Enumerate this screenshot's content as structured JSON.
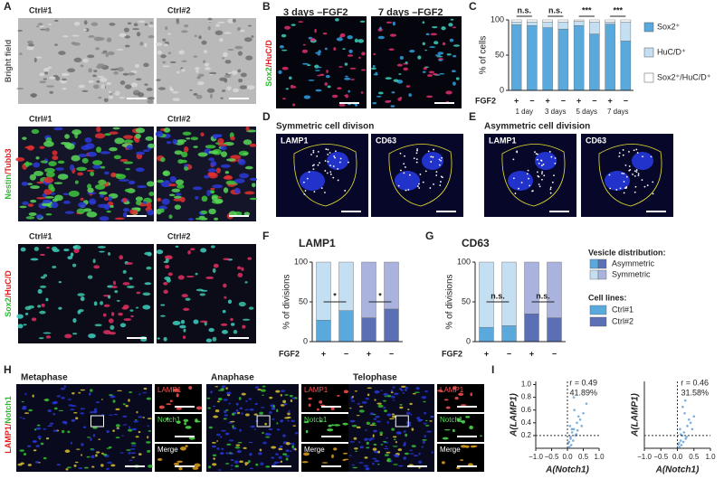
{
  "panel_labels": [
    "A",
    "B",
    "C",
    "D",
    "E",
    "F",
    "G",
    "H",
    "I"
  ],
  "a": {
    "row_titles": [
      [
        "Ctrl#1",
        "Ctrl#2"
      ],
      [
        "Ctrl#1",
        "Ctrl#2"
      ],
      [
        "Ctrl#1",
        "Ctrl#2"
      ]
    ],
    "side_labels": [
      [
        {
          "text": "Bright field",
          "color": "#555555"
        }
      ],
      [
        {
          "text": "Nestin",
          "color": "#2fb82f"
        },
        {
          "text": "/",
          "color": "#e02020"
        },
        {
          "text": "Tubb3",
          "color": "#e02020"
        }
      ],
      [
        {
          "text": "Sox2",
          "color": "#2fb82f"
        },
        {
          "text": "/",
          "color": "#e02020"
        },
        {
          "text": "HuC/D",
          "color": "#e02020"
        }
      ]
    ]
  },
  "b": {
    "titles": [
      "3 days –FGF2",
      "7 days –FGF2"
    ],
    "side_label": [
      {
        "text": "Sox2",
        "color": "#2fb82f"
      },
      {
        "text": "/",
        "color": "#e02020"
      },
      {
        "text": "HuC/D",
        "color": "#e02020"
      }
    ]
  },
  "d": {
    "title": "Symmetric cell divison",
    "tags": [
      "LAMP1",
      "CD63"
    ]
  },
  "e": {
    "title": "Asymmetric cell division",
    "tags": [
      "LAMP1",
      "CD63"
    ]
  },
  "h": {
    "stages": [
      "Metaphase",
      "Anaphase",
      "Telophase"
    ],
    "side_label": [
      {
        "text": "LAMP1",
        "color": "#e02020"
      },
      {
        "text": "/",
        "color": "#e02020"
      },
      {
        "text": "Notch1",
        "color": "#2fb82f"
      }
    ],
    "insets": [
      {
        "text": "LAMP1",
        "color": "#ff5050"
      },
      {
        "text": "Notch1",
        "color": "#50e050"
      },
      {
        "text": "Merge",
        "color": "#ffffff"
      }
    ]
  },
  "legend": {
    "vesicle_title": "Vesicle distribution:",
    "vesicle_items": [
      {
        "name": "Asymmetric",
        "colors": [
          "#5aa9dd",
          "#5b6fb5"
        ]
      },
      {
        "name": "Symmetric",
        "colors": [
          "#c4dff2",
          "#aab3dd"
        ]
      }
    ],
    "cell_title": "Cell lines:",
    "cell_items": [
      {
        "name": "Ctrl#1",
        "color": "#5aa9dd"
      },
      {
        "name": "Ctrl#2",
        "color": "#5b6fb5"
      }
    ]
  },
  "chart_data": [
    {
      "type": "bar",
      "stacked": true,
      "ylabel": "% of cells",
      "row_label": "FGF2",
      "categories": [
        "+",
        "−",
        "+",
        "−",
        "+",
        "−",
        "+",
        "−"
      ],
      "groups": [
        "1 day",
        "3 days",
        "5 days",
        "7 days"
      ],
      "significance": [
        "n.s.",
        "n.s.",
        "***",
        "***"
      ],
      "series": [
        {
          "name": "Sox2⁺",
          "color": "#5aa9dd",
          "values": [
            93,
            92,
            89,
            87,
            92,
            80,
            94,
            70
          ]
        },
        {
          "name": "HuC/D⁺",
          "color": "#c4dff2",
          "values": [
            4,
            5,
            8,
            10,
            6,
            17,
            3,
            27
          ]
        },
        {
          "name": "Sox2⁺/HuC/D⁺",
          "color": "#ffffff",
          "values": [
            3,
            3,
            3,
            3,
            2,
            3,
            3,
            3
          ]
        }
      ],
      "ylim": [
        0,
        100
      ],
      "yticks": [
        0,
        50,
        100
      ]
    },
    {
      "type": "bar",
      "stacked": true,
      "title": "LAMP1",
      "ylabel": "% of divisions",
      "row_label": "FGF2",
      "categories": [
        "+",
        "−",
        "+",
        "−"
      ],
      "significance": [
        "*",
        "*"
      ],
      "series": [
        {
          "colors": [
            "#5aa9dd",
            "#5aa9dd",
            "#5b6fb5",
            "#5b6fb5"
          ],
          "values": [
            27,
            39,
            30,
            41
          ]
        },
        {
          "colors": [
            "#c4dff2",
            "#c4dff2",
            "#aab3dd",
            "#aab3dd"
          ],
          "values": [
            73,
            61,
            70,
            59
          ]
        }
      ],
      "ylim": [
        0,
        100
      ],
      "yticks": [
        0,
        50,
        100
      ]
    },
    {
      "type": "bar",
      "stacked": true,
      "title": "CD63",
      "ylabel": "% of divisions",
      "row_label": "FGF2",
      "categories": [
        "+",
        "−",
        "+",
        "−"
      ],
      "significance": [
        "n.s.",
        "n.s."
      ],
      "series": [
        {
          "colors": [
            "#5aa9dd",
            "#5aa9dd",
            "#5b6fb5",
            "#5b6fb5"
          ],
          "values": [
            18,
            20,
            35,
            30
          ]
        },
        {
          "colors": [
            "#c4dff2",
            "#c4dff2",
            "#aab3dd",
            "#aab3dd"
          ],
          "values": [
            82,
            80,
            65,
            70
          ]
        }
      ],
      "ylim": [
        0,
        100
      ],
      "yticks": [
        0,
        50,
        100
      ]
    },
    {
      "type": "scatter",
      "xlabel": "A(Notch1)",
      "ylabel": "A(LAMP1)",
      "annotations": [
        "r = 0.49",
        "41.89%"
      ],
      "color": "#5a9bd5",
      "x": [
        0.05,
        0.1,
        0.15,
        0.2,
        0.25,
        0.3,
        0.12,
        0.08,
        0.35,
        0.4,
        0.18,
        0.22,
        0.5,
        0.02,
        0.28,
        0.6,
        0.14,
        0.1,
        0.45,
        0.32,
        0.06,
        0.2
      ],
      "y": [
        0.1,
        0.15,
        0.25,
        0.3,
        0.2,
        0.4,
        0.05,
        0.35,
        0.5,
        0.45,
        0.12,
        0.6,
        0.55,
        0.08,
        0.22,
        0.7,
        0.3,
        0.18,
        0.35,
        0.28,
        0.02,
        0.8
      ],
      "ref_x": 0,
      "ref_y": 0.2,
      "xlim": [
        -1,
        1
      ],
      "ylim": [
        0,
        1.05
      ],
      "xticks": [
        {
          "value": -1,
          "label": "−1.0"
        },
        {
          "value": -0.5,
          "label": "−0.5"
        },
        {
          "value": 0,
          "label": "0.0"
        },
        {
          "value": 0.5,
          "label": "0.5"
        },
        {
          "value": 1,
          "label": "1.0"
        }
      ],
      "yticks": [
        0.2,
        0.4,
        0.6,
        0.8,
        {
          "value": 1,
          "label": "1.0"
        }
      ]
    },
    {
      "type": "scatter",
      "xlabel": "A(Notch1)",
      "ylabel": "A(LAMP1)",
      "annotations": [
        "r = 0.46",
        "31.58%"
      ],
      "color": "#5a9bd5",
      "x": [
        0.05,
        0.1,
        0.15,
        0.2,
        0.25,
        0.3,
        0.12,
        0.08,
        0.35,
        0.4,
        0.18,
        0.22,
        0.5,
        0.02,
        0.28,
        0.16,
        0.1,
        0.45,
        0.06,
        0.24
      ],
      "y": [
        0.08,
        0.12,
        0.2,
        0.25,
        0.15,
        0.35,
        0.05,
        0.3,
        0.45,
        0.4,
        0.1,
        0.55,
        0.5,
        0.06,
        0.18,
        0.65,
        0.22,
        0.3,
        0.02,
        0.75
      ],
      "ref_x": 0,
      "ref_y": 0.2,
      "xlim": [
        -1,
        1
      ],
      "ylim": [
        0,
        1.05
      ],
      "xticks": [
        {
          "value": -1,
          "label": "−1.0"
        },
        {
          "value": -0.5,
          "label": "−0.5"
        },
        {
          "value": 0,
          "label": "0.0"
        },
        {
          "value": 0.5,
          "label": "0.5"
        },
        {
          "value": 1,
          "label": "1.0"
        }
      ]
    }
  ]
}
